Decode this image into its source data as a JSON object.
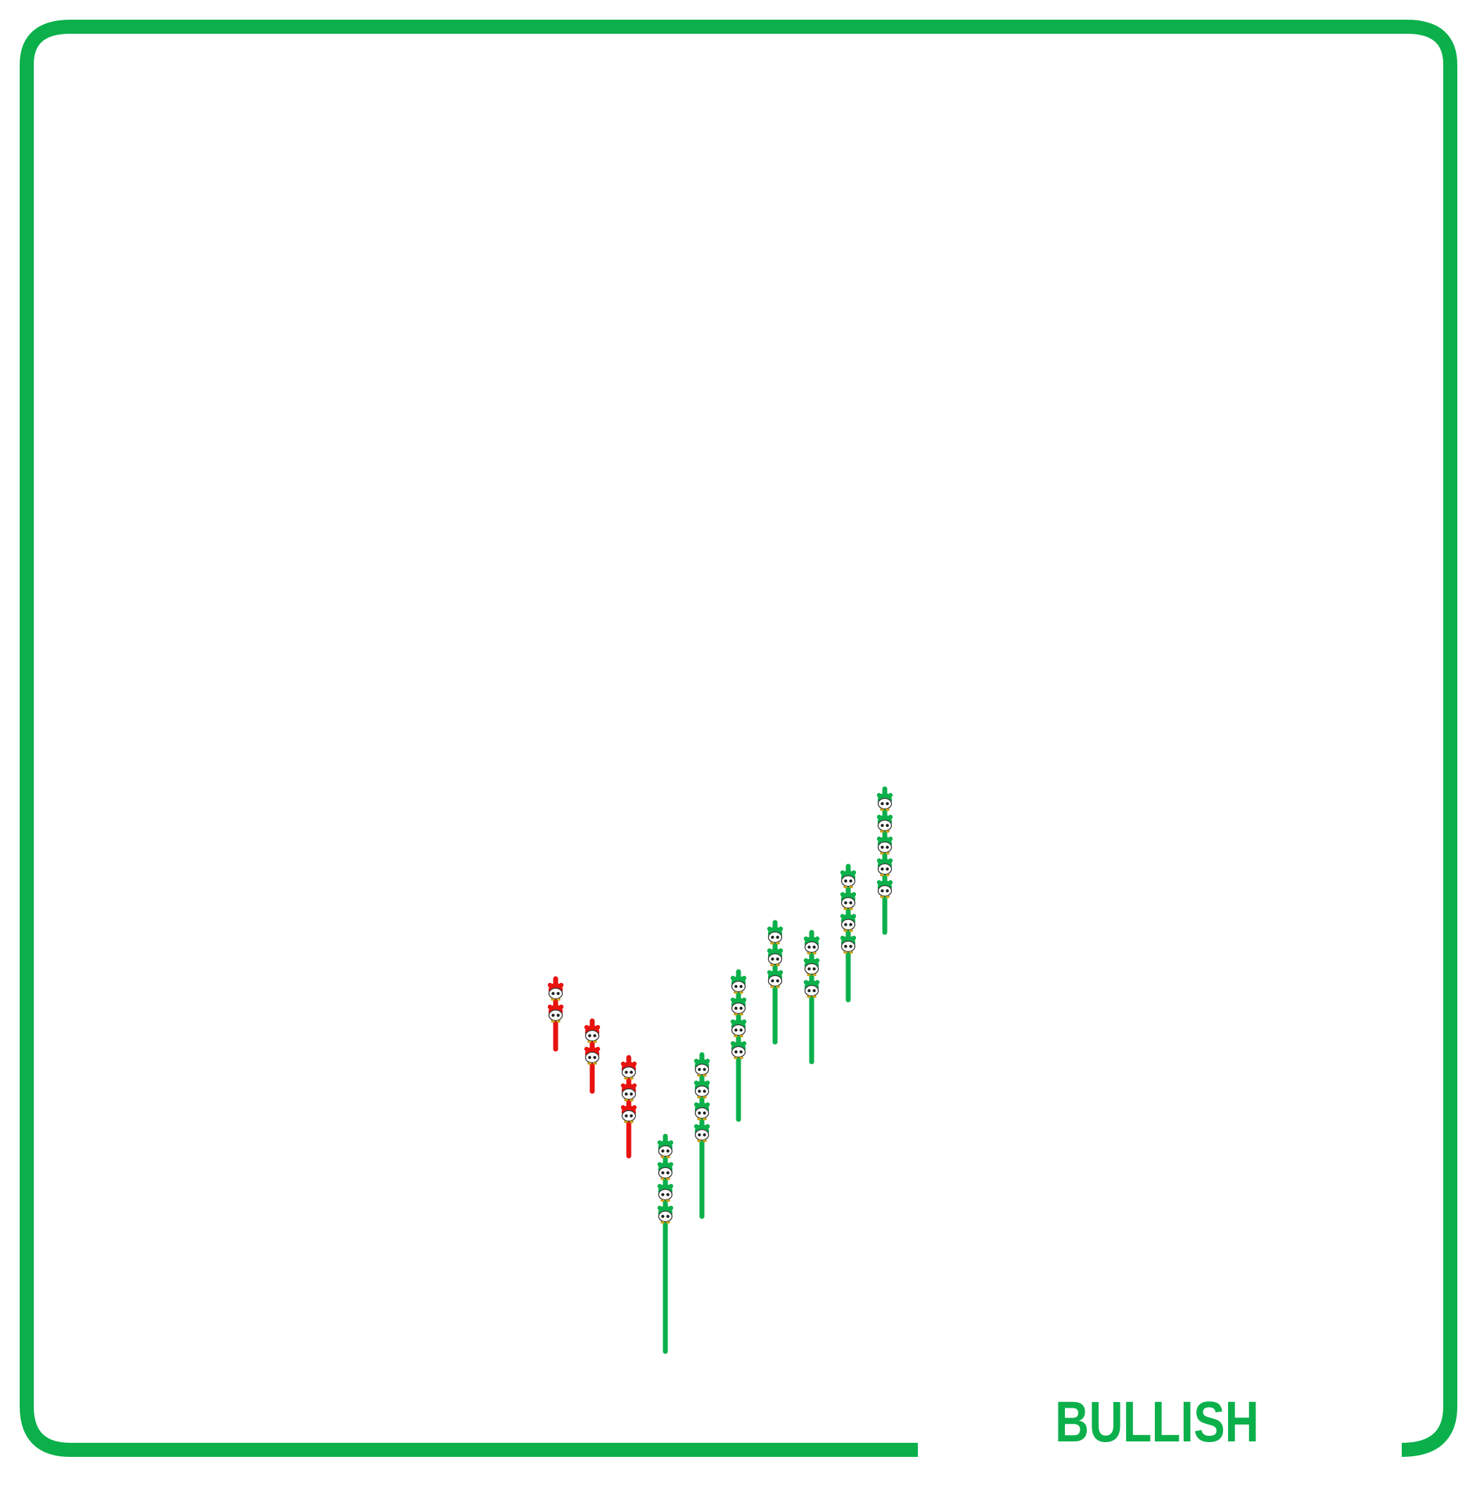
{
  "colors": {
    "bullish": "#0bb04b",
    "bearish": "#e8120f",
    "frame": "#0bb04b",
    "background": "#ffffff"
  },
  "label": {
    "text": "BULLISH"
  },
  "chart_data": {
    "type": "candlestick",
    "pattern_label": "BULLISH",
    "grid": false,
    "legend": "none",
    "ylim": [
      0,
      100
    ],
    "candles": [
      {
        "index": 1,
        "direction": "bearish",
        "high": 36.0,
        "low": 31.0,
        "figures": 2
      },
      {
        "index": 2,
        "direction": "bearish",
        "high": 33.0,
        "low": 28.0,
        "figures": 2
      },
      {
        "index": 3,
        "direction": "bearish",
        "high": 30.4,
        "low": 23.4,
        "figures": 3
      },
      {
        "index": 4,
        "direction": "bullish",
        "high": 24.8,
        "low": 9.5,
        "figures": 4
      },
      {
        "index": 5,
        "direction": "bullish",
        "high": 30.6,
        "low": 19.1,
        "figures": 4
      },
      {
        "index": 6,
        "direction": "bullish",
        "high": 36.5,
        "low": 26.0,
        "figures": 4
      },
      {
        "index": 7,
        "direction": "bullish",
        "high": 40.0,
        "low": 31.5,
        "figures": 3
      },
      {
        "index": 8,
        "direction": "bullish",
        "high": 39.3,
        "low": 30.1,
        "figures": 3
      },
      {
        "index": 9,
        "direction": "bullish",
        "high": 44.0,
        "low": 34.5,
        "figures": 4
      },
      {
        "index": 10,
        "direction": "bullish",
        "high": 49.5,
        "low": 39.3,
        "figures": 5
      }
    ]
  }
}
